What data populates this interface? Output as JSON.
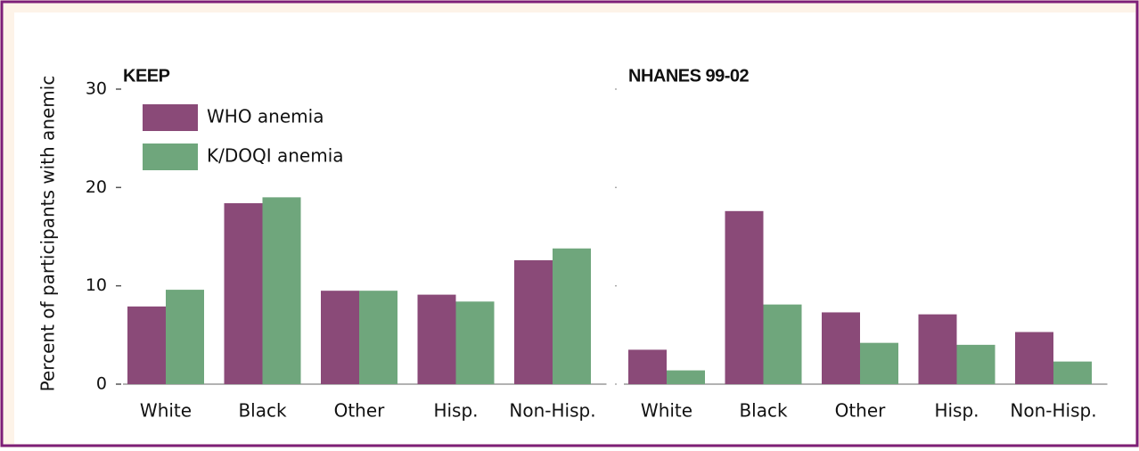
{
  "chart_data": {
    "type": "bar",
    "y_label": "Percent of participants with anemic",
    "ylim": [
      0,
      30
    ],
    "yticks": [
      0,
      10,
      20,
      30
    ],
    "series": [
      {
        "name": "WHO anemia",
        "color": "#8a4a78"
      },
      {
        "name": "K/DOQI anemia",
        "color": "#6fa67c"
      }
    ],
    "panels": [
      {
        "title": "KEEP",
        "categories": [
          "White",
          "Black",
          "Other",
          "Hisp.",
          "Non-Hisp."
        ],
        "series": [
          {
            "values": [
              7.9,
              18.4,
              9.5,
              9.1,
              12.6
            ]
          },
          {
            "values": [
              9.6,
              19.0,
              9.5,
              8.4,
              13.8
            ]
          }
        ]
      },
      {
        "title": "NHANES 99-02",
        "categories": [
          "White",
          "Black",
          "Other",
          "Hisp.",
          "Non-Hisp."
        ],
        "series": [
          {
            "values": [
              3.5,
              17.6,
              7.3,
              7.1,
              5.3
            ]
          },
          {
            "values": [
              1.4,
              8.1,
              4.2,
              4.0,
              2.3
            ]
          }
        ]
      }
    ]
  }
}
